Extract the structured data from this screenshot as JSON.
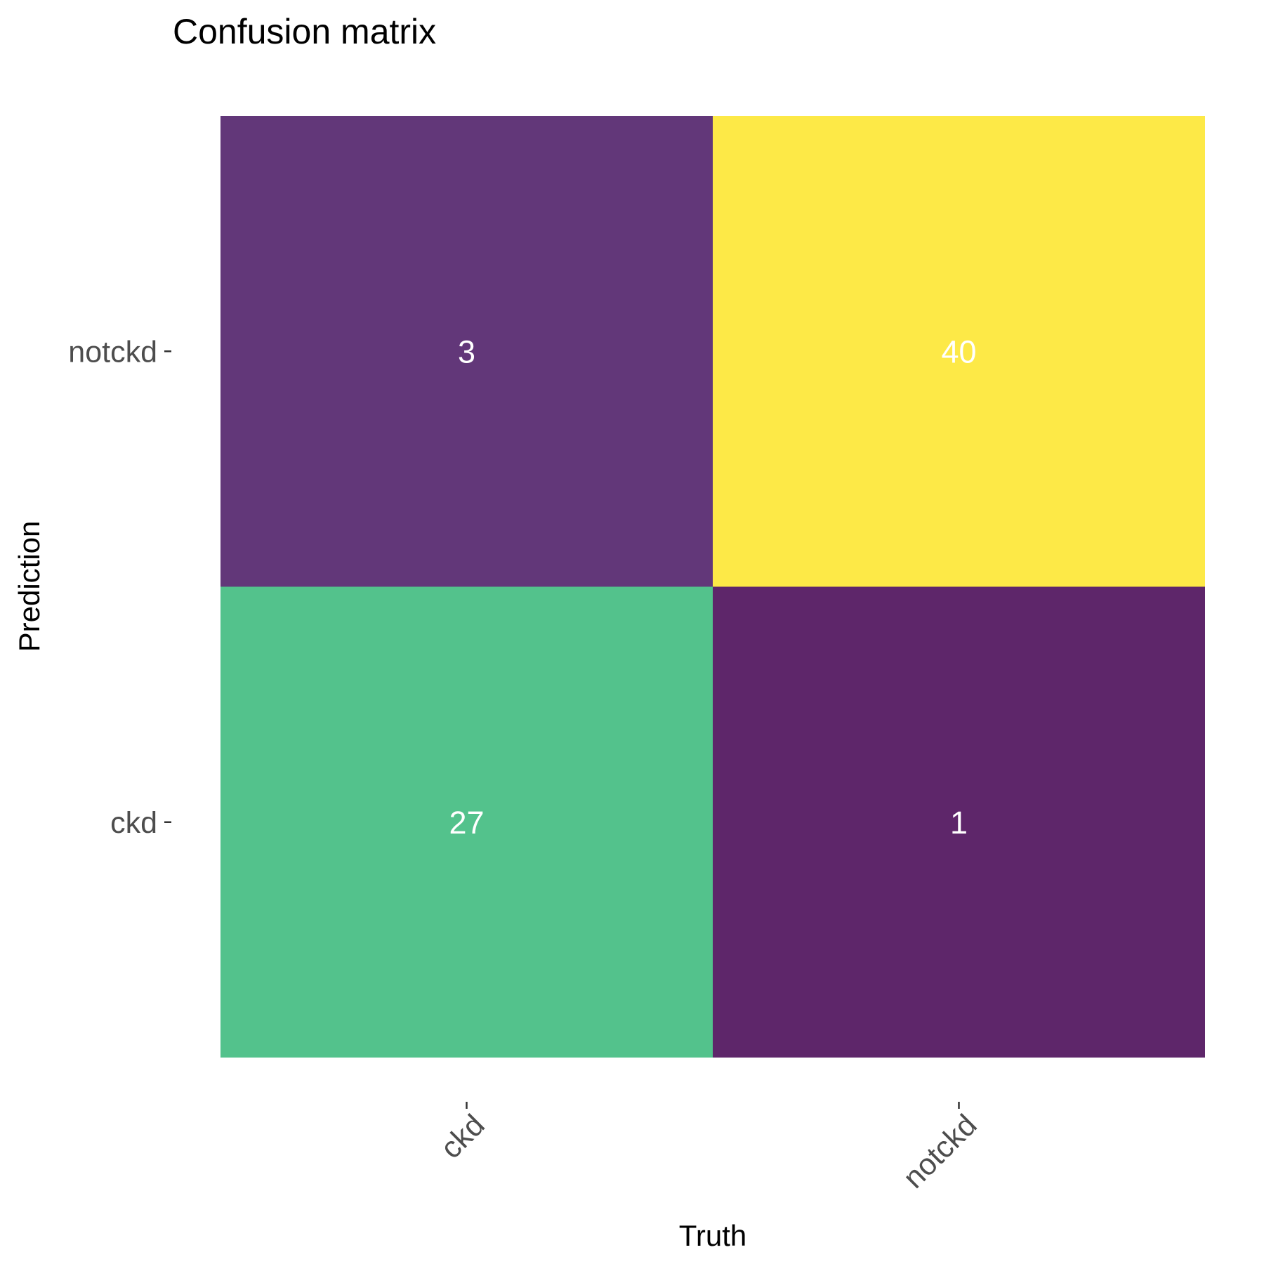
{
  "chart_data": {
    "type": "heatmap",
    "title": "Confusion matrix",
    "xlabel": "Truth",
    "ylabel": "Prediction",
    "x_categories": [
      "ckd",
      "notckd"
    ],
    "y_categories": [
      "ckd",
      "notckd"
    ],
    "cells": [
      {
        "truth": "ckd",
        "prediction": "notckd",
        "value": 3,
        "label": "3",
        "color": "#623779"
      },
      {
        "truth": "notckd",
        "prediction": "notckd",
        "value": 40,
        "label": "40",
        "color": "#FDE947"
      },
      {
        "truth": "ckd",
        "prediction": "ckd",
        "value": 27,
        "label": "27",
        "color": "#53C28C"
      },
      {
        "truth": "notckd",
        "prediction": "ckd",
        "value": 1,
        "label": "1",
        "color": "#5E266A"
      }
    ],
    "legend": "none",
    "grid": false
  }
}
